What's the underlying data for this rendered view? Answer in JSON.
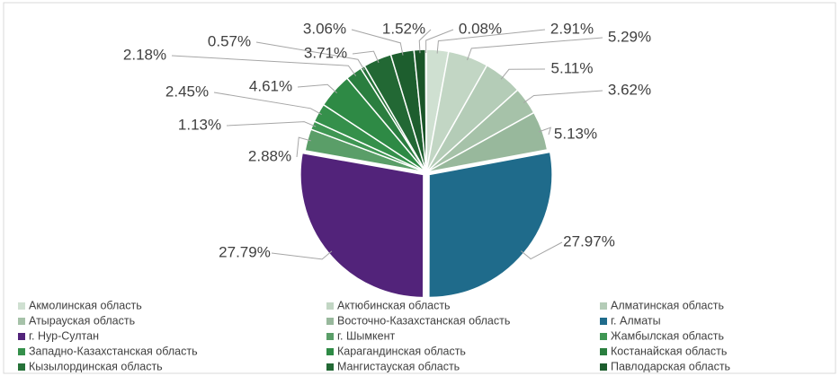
{
  "chart_data": {
    "type": "pie",
    "categories": [
      "Акмолинская область",
      "Актюбинская область",
      "Алматинская область",
      "Атырауская область",
      "Восточно-Казахстанская область",
      "г. Алматы",
      "г. Нур-Султан",
      "г. Шымкент",
      "Жамбылская область",
      "Западно-Казахстанская область",
      "Карагандинская область",
      "Костанайская область",
      "Кызылординская область",
      "Мангистауская область",
      "Павлодарская область",
      null,
      null
    ],
    "values": [
      2.91,
      5.29,
      5.11,
      3.62,
      5.13,
      27.97,
      27.79,
      2.88,
      1.13,
      2.45,
      4.61,
      2.18,
      0.57,
      3.71,
      3.06,
      1.52,
      0.08
    ],
    "value_labels": [
      "2.91%",
      "5.29%",
      "5.11%",
      "3.62%",
      "5.13%",
      "27.97%",
      "27.79%",
      "2.88%",
      "1.13%",
      "2.45%",
      "4.61%",
      "2.18%",
      "0.57%",
      "3.71%",
      "3.06%",
      "1.52%",
      "0.08%"
    ],
    "colors": [
      "#cfe0d1",
      "#c2d6c4",
      "#b4ccb7",
      "#a6c2a9",
      "#98b89c",
      "#1f6b8b",
      "#52237a",
      "#5a9e68",
      "#3f9653",
      "#35904b",
      "#2e8a45",
      "#2a7e3f",
      "#267239",
      "#226834",
      "#1d5e2e",
      "#1a5528",
      "#d8e8da"
    ],
    "legend": "bottom"
  }
}
